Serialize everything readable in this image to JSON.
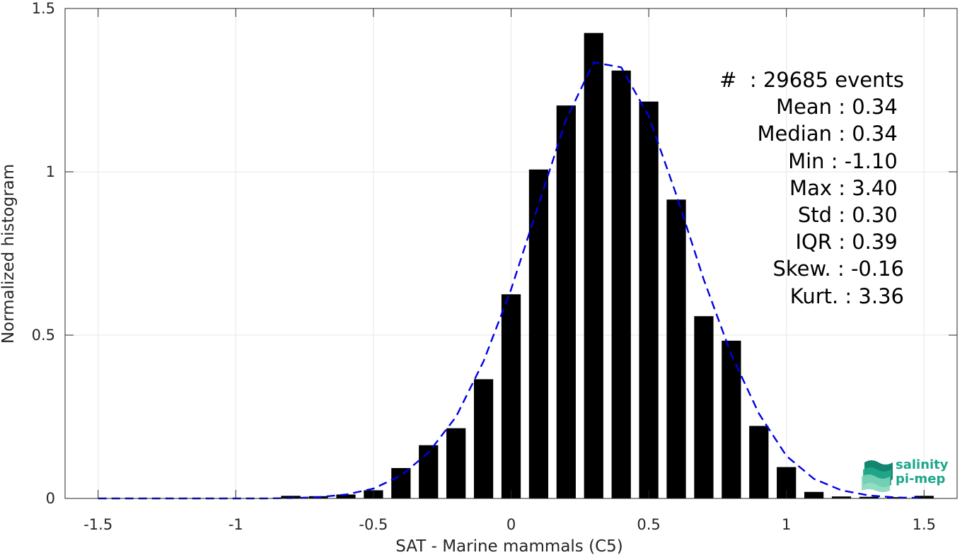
{
  "chart_data": {
    "type": "bar",
    "xlabel": "SAT - Marine mammals (C5)",
    "ylabel": "Normalized histogram",
    "xlim": [
      -1.62,
      1.62
    ],
    "ylim": [
      0,
      1.5
    ],
    "xticks": [
      "-1.5",
      "-1",
      "-0.5",
      "0",
      "0.5",
      "1",
      "1.5"
    ],
    "xtick_values": [
      -1.5,
      -1,
      -0.5,
      0,
      0.5,
      1,
      1.5
    ],
    "yticks": [
      "0",
      "0.5",
      "1",
      "1.5"
    ],
    "ytick_values": [
      0,
      0.5,
      1,
      1.5
    ],
    "grid": true,
    "bar_width": 0.07,
    "bars": {
      "x": [
        -0.8,
        -0.7,
        -0.6,
        -0.5,
        -0.4,
        -0.3,
        -0.2,
        -0.1,
        0.0,
        0.1,
        0.2,
        0.3,
        0.4,
        0.5,
        0.6,
        0.7,
        0.8,
        0.9,
        1.0,
        1.1,
        1.2,
        1.3,
        1.4,
        1.5
      ],
      "values": [
        0.008,
        0.007,
        0.012,
        0.025,
        0.093,
        0.163,
        0.215,
        0.365,
        0.625,
        1.007,
        1.203,
        1.425,
        1.31,
        1.215,
        0.915,
        0.558,
        0.483,
        0.222,
        0.096,
        0.02,
        0.006,
        0.005,
        0.004,
        0.008
      ]
    },
    "fit_curve": {
      "style": "dashed",
      "color": "#0000e6",
      "x": [
        -1.5,
        -1.4,
        -1.3,
        -1.2,
        -1.1,
        -1.0,
        -0.9,
        -0.8,
        -0.7,
        -0.6,
        -0.5,
        -0.4,
        -0.3,
        -0.2,
        -0.1,
        0.0,
        0.1,
        0.2,
        0.3,
        0.4,
        0.5,
        0.6,
        0.7,
        0.8,
        0.9,
        1.0,
        1.1,
        1.2,
        1.3,
        1.4,
        1.5
      ],
      "y": [
        0,
        0,
        0,
        0,
        0,
        0,
        0,
        0.001,
        0.004,
        0.012,
        0.03,
        0.07,
        0.14,
        0.25,
        0.42,
        0.64,
        0.9,
        1.16,
        1.335,
        1.32,
        1.17,
        0.93,
        0.67,
        0.44,
        0.26,
        0.13,
        0.06,
        0.025,
        0.009,
        0.003,
        0.001
      ]
    },
    "stats": [
      "#  : 29685 events",
      "Mean : 0.34 ",
      "Median : 0.34 ",
      "Min : -1.10 ",
      "Max : 3.40 ",
      "Std : 0.30 ",
      "IQR : 0.39 ",
      "Skew. : -0.16",
      "Kurt. : 3.36"
    ]
  },
  "logo": {
    "line1": "salinity",
    "line2": "pi-mep",
    "color": "#1aa889"
  }
}
